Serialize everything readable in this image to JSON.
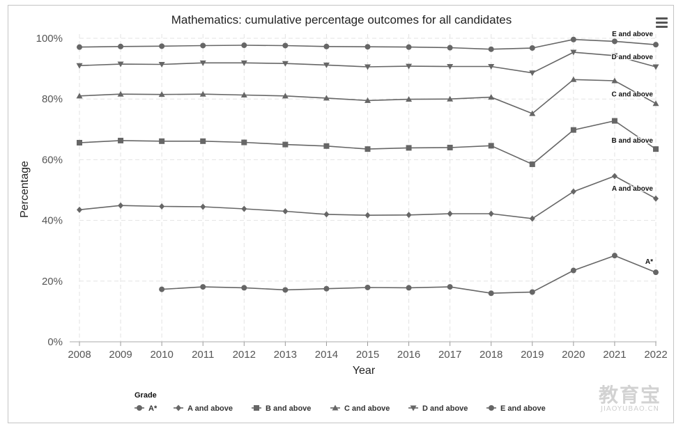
{
  "toolbar": {
    "menu_icon": "hamburger-menu-icon"
  },
  "watermark": {
    "main": "教育宝",
    "sub": "JIAOYUBAO.CN"
  },
  "chart_data": {
    "type": "line",
    "title": "Mathematics: cumulative percentage outcomes for all candidates",
    "xlabel": "Year",
    "ylabel": "Percentage",
    "ylim": [
      0,
      100
    ],
    "yticks": [
      "0%",
      "20%",
      "40%",
      "60%",
      "80%",
      "100%"
    ],
    "x": [
      2008,
      2009,
      2010,
      2011,
      2012,
      2013,
      2014,
      2015,
      2016,
      2017,
      2018,
      2019,
      2020,
      2021,
      2022
    ],
    "grid": true,
    "legend_title": "Grade",
    "legend_position": "bottom-left",
    "line_color": "#666666",
    "series": [
      {
        "name": "A*",
        "label": "A*",
        "marker": "circle",
        "values": [
          null,
          null,
          17.3,
          18.1,
          17.8,
          17.1,
          17.5,
          17.9,
          17.8,
          18.1,
          16.0,
          16.4,
          23.5,
          28.4,
          22.9
        ]
      },
      {
        "name": "A and above",
        "label": "A and above",
        "marker": "diamond",
        "values": [
          43.5,
          44.9,
          44.6,
          44.5,
          43.8,
          43.0,
          42.0,
          41.7,
          41.8,
          42.2,
          42.2,
          40.6,
          49.5,
          54.6,
          47.2
        ]
      },
      {
        "name": "B and above",
        "label": "B and above",
        "marker": "square",
        "values": [
          65.6,
          66.3,
          66.1,
          66.1,
          65.7,
          65.0,
          64.5,
          63.5,
          63.9,
          64.0,
          64.6,
          58.5,
          69.8,
          72.8,
          63.5
        ]
      },
      {
        "name": "C and above",
        "label": "C and above",
        "marker": "triangle-up",
        "values": [
          81.0,
          81.6,
          81.5,
          81.6,
          81.3,
          81.0,
          80.3,
          79.5,
          79.9,
          80.0,
          80.6,
          75.2,
          86.4,
          86.0,
          78.5
        ]
      },
      {
        "name": "D and above",
        "label": "D and above",
        "marker": "triangle-down",
        "values": [
          91.0,
          91.5,
          91.4,
          91.9,
          91.9,
          91.7,
          91.2,
          90.6,
          90.8,
          90.7,
          90.7,
          88.6,
          95.4,
          94.3,
          90.6
        ]
      },
      {
        "name": "E and above",
        "label": "E and above",
        "marker": "circle",
        "values": [
          97.1,
          97.3,
          97.4,
          97.6,
          97.7,
          97.6,
          97.3,
          97.2,
          97.1,
          96.9,
          96.4,
          96.8,
          99.6,
          99.0,
          97.9
        ]
      }
    ]
  }
}
